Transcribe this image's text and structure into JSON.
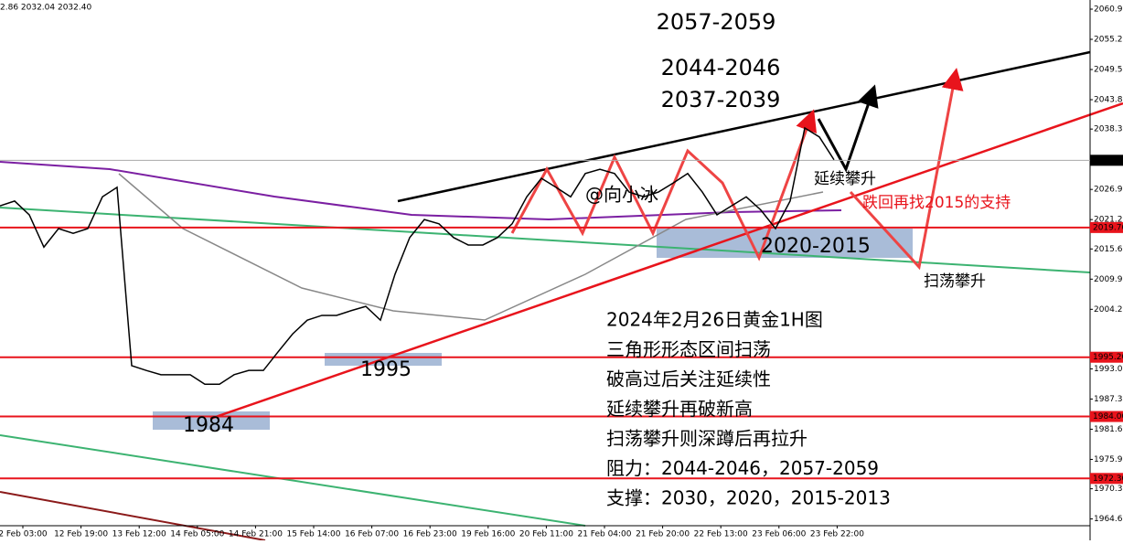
{
  "chart_data": {
    "type": "line",
    "header_text": "2.86 2032.04 2032.40",
    "x_tick_labels": [
      "2 Feb 03:00",
      "12 Feb 19:00",
      "13 Feb 12:00",
      "14 Feb 05:00",
      "14 Feb 21:00",
      "15 Feb 14:00",
      "16 Feb 07:00",
      "16 Feb 23:00",
      "19 Feb 16:00",
      "20 Feb 11:00",
      "21 Feb 04:00",
      "21 Feb 20:00",
      "22 Feb 13:00",
      "23 Feb 06:00",
      "23 Feb 22:00"
    ],
    "ylim": [
      1963.37,
      2062.68
    ],
    "yticks": [
      2060.95,
      2055.25,
      2049.55,
      2043.85,
      {
        "value": 2038.3,
        "label": "2038.30"
      },
      {
        "value": 2026.9,
        "label": "2026.90"
      },
      {
        "value": 2021.2,
        "label": "2021.20"
      },
      2015.65,
      2009.95,
      2004.25,
      {
        "value": 1993.0,
        "label": "1993.00"
      },
      {
        "value": 1987.3,
        "label": "1987.30"
      },
      {
        "value": 1981.6,
        "label": "1981.60"
      },
      {
        "value": 1975.9,
        "label": "1975.90"
      },
      1970.35,
      1964.65
    ],
    "current_price": {
      "value": 2032.4,
      "label": "2032.40"
    },
    "levels": [
      {
        "value": 2019.7,
        "label": "2019.70"
      },
      {
        "value": 1995.2,
        "label": "1995.20"
      },
      {
        "value": 1984.0,
        "label": "1984.00"
      },
      {
        "value": 1972.3,
        "label": "1972.30"
      }
    ],
    "level_color": "#e8141c",
    "series": [
      {
        "name": "XAUUSD H1",
        "color": "#000000",
        "values": [
          2023.8,
          2024.7,
          2022.1,
          2016.0,
          2019.5,
          2018.6,
          2019.5,
          2025.5,
          2027.3,
          1993.6,
          1992.7,
          1991.9,
          1991.9,
          1991.9,
          1990.1,
          1990.1,
          1991.9,
          1992.7,
          1992.7,
          1996.2,
          1999.6,
          2002.2,
          2003.1,
          2003.1,
          2004.0,
          2004.8,
          2002.2,
          2010.9,
          2017.8,
          2021.2,
          2020.4,
          2017.8,
          2016.4,
          2016.4,
          2017.8,
          2020.4,
          2025.5,
          2029.0,
          2027.3,
          2025.5,
          2029.9,
          2030.7,
          2029.9,
          2026.4,
          2025.5,
          2026.4,
          2028.1,
          2029.9,
          2026.4,
          2022.1,
          2023.8,
          2025.5,
          2023.0,
          2019.5,
          2024.7,
          2038.5,
          2036.8,
          2032.5
        ]
      }
    ],
    "annotations": [
      "2057-2059",
      "2044-2046",
      "2037-2039",
      "@向小冰",
      "延续攀升",
      "跌回再找2015的支持",
      "2020-2015",
      "扫荡攀升",
      "1995",
      "1984"
    ],
    "analysis_text": [
      "2024年2月26日黄金1H图",
      "三角形形态区间扫荡",
      "破高过后关注延续性",
      "延续攀升再破新高",
      "扫荡攀升则深蹲后再拉升",
      "阻力：2044-2046，2057-2059",
      "支撑：2030，2020，2015-2013"
    ]
  }
}
